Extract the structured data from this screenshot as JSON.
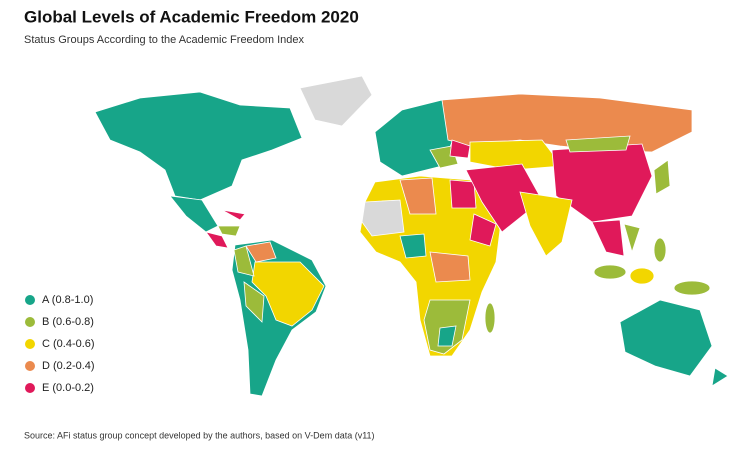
{
  "title": "Global Levels of Academic Freedom 2020",
  "subtitle": "Status Groups According to the Academic Freedom Index",
  "legend": [
    {
      "label": "A (0.8-1.0)",
      "color": "#17a589"
    },
    {
      "label": "B (0.6-0.8)",
      "color": "#9cbb3a"
    },
    {
      "label": "C (0.4-0.6)",
      "color": "#f2d600"
    },
    {
      "label": "D (0.2-0.4)",
      "color": "#eb8a4e"
    },
    {
      "label": "E (0.0-0.2)",
      "color": "#e0195a"
    }
  ],
  "source": "Source: AFi status group concept developed by the authors, based on V-Dem data (v11)"
}
